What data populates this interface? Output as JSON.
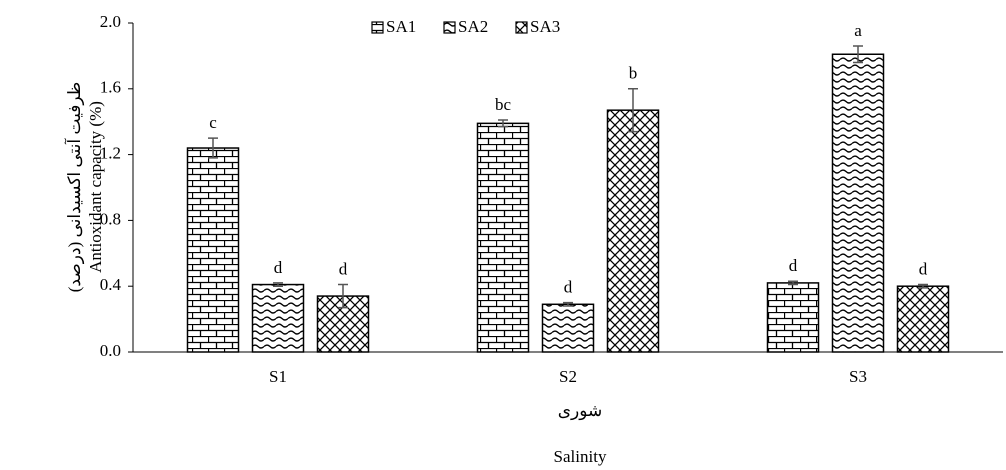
{
  "chart_data": {
    "type": "bar",
    "ylabel": "Antioxidant capacity (%)",
    "ylabel_fa": "ظرفیت آنتی اکسیدانی (درصد)",
    "xlabel": "Salinity",
    "xlabel_fa": "شوری",
    "categories": [
      "S1",
      "S2",
      "S3"
    ],
    "series": [
      {
        "name": "SA1",
        "pattern": "brick",
        "color": "#000000",
        "values": [
          1.24,
          1.39,
          0.42
        ],
        "errors": [
          0.06,
          0.02,
          0.01
        ],
        "labels": [
          "c",
          "bc",
          "d"
        ]
      },
      {
        "name": "SA2",
        "pattern": "wave",
        "color": "#000000",
        "values": [
          0.41,
          0.29,
          1.81
        ],
        "errors": [
          0.01,
          0.01,
          0.05
        ],
        "labels": [
          "d",
          "d",
          "a"
        ]
      },
      {
        "name": "SA3",
        "pattern": "cross",
        "color": "#000000",
        "values": [
          0.34,
          1.47,
          0.4
        ],
        "errors": [
          0.07,
          0.13,
          0.01
        ],
        "labels": [
          "d",
          "b",
          "d"
        ]
      }
    ],
    "ylim": [
      0,
      2
    ],
    "yticks": [
      {
        "value": 0,
        "label": "0.0"
      },
      {
        "value": 0.4,
        "label": "0.4"
      },
      {
        "value": 0.8,
        "label": "0.8"
      },
      {
        "value": 1.2,
        "label": "1.2"
      },
      {
        "value": 1.6,
        "label": "1.6"
      },
      {
        "value": 2,
        "label": "2.0"
      }
    ],
    "grid": false,
    "legend": "top"
  }
}
